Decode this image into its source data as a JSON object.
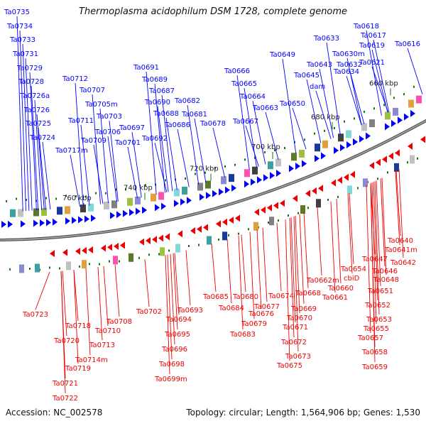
{
  "title": "Thermoplasma acidophilum DSM 1728, complete genome",
  "footer": {
    "accession": "Accession: NC_002578",
    "summary": "Topology: circular; Length: 1,564,906 bp; Genes: 1,530"
  },
  "colors": {
    "forward": "#0000ff",
    "reverse": "#ee0000",
    "backbone": "#777777",
    "tick": "#0a7a0a",
    "text": "#111111"
  },
  "kbp_ticks": [
    "760 kbp",
    "740 kbp",
    "720 kbp",
    "700 kbp",
    "680 kbp",
    "660 kbp"
  ],
  "forward_labels": [
    "Ta0735",
    "Ta0734",
    "Ta0733",
    "Ta0731",
    "Ta0729",
    "Ta0728",
    "Ta0726a",
    "Ta0726",
    "Ta0725",
    "Ta0724",
    "Ta0712",
    "Ta0707",
    "Ta0705m",
    "Ta0711",
    "Ta0703",
    "Ta0706",
    "Ta0709",
    "Ta0697",
    "Ta0701",
    "Ta0717m",
    "Ta0691",
    "Ta0689",
    "Ta0687",
    "Ta0690",
    "Ta0688",
    "Ta0682",
    "Ta0681",
    "Ta0686",
    "Ta0678",
    "Ta0692",
    "Ta0666",
    "Ta0665",
    "Ta0664",
    "Ta0663",
    "Ta0667",
    "Ta0649",
    "Ta0650",
    "Ta0633",
    "Ta0643",
    "Ta0645",
    "dam",
    "Ta0630m",
    "Ta0632",
    "Ta0634",
    "Ta0618",
    "Ta0617",
    "Ta0619",
    "Ta0616",
    "Ta0621"
  ],
  "reverse_labels": [
    "Ta0723",
    "Ta0718",
    "Ta0720",
    "Ta0714m",
    "Ta0719",
    "Ta0721",
    "Ta0722",
    "Ta0713",
    "Ta0710",
    "Ta0708",
    "Ta0702",
    "Ta0694",
    "Ta0693",
    "Ta0695",
    "Ta0696",
    "Ta0698",
    "Ta0699m",
    "Ta0685",
    "Ta0684",
    "Ta0683",
    "Ta0680",
    "Ta0679",
    "Ta0676",
    "Ta0677",
    "Ta0674",
    "Ta0672",
    "Ta0673",
    "Ta0675",
    "Ta0671",
    "Ta0670",
    "Ta0669",
    "Ta0668",
    "Ta0662m",
    "Ta0661",
    "Ta0660",
    "Ta0654",
    "cbiD",
    "Ta0647",
    "Ta0646",
    "Ta0648",
    "Ta0651",
    "Ta0652",
    "Ta0653",
    "Ta0655",
    "Ta0657",
    "Ta0658",
    "Ta0659",
    "Ta0640",
    "Ta0641m",
    "Ta0642"
  ]
}
